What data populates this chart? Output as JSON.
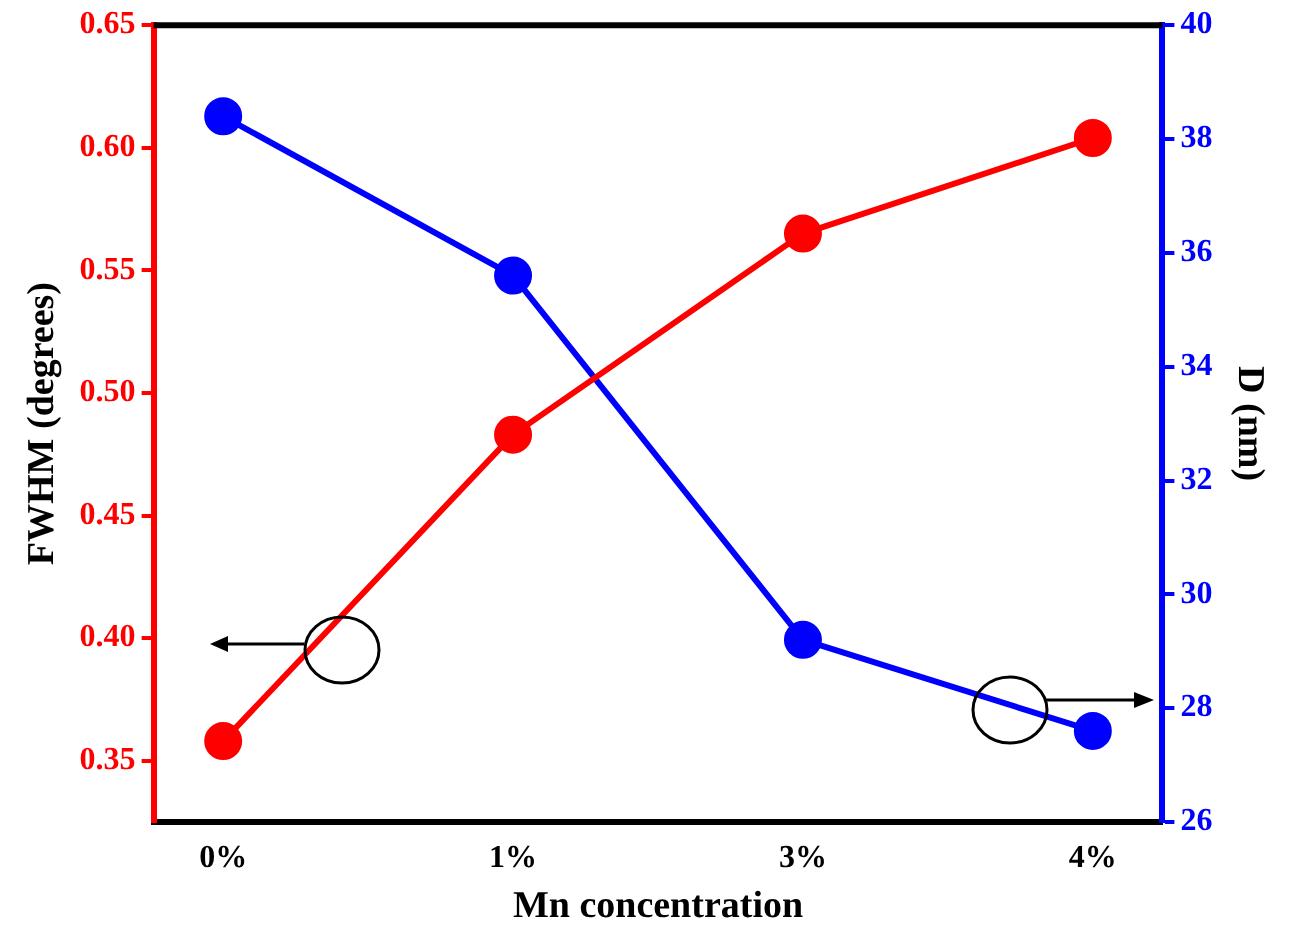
{
  "chart_data": {
    "type": "line",
    "xlabel": "Mn concentration",
    "ylabel": "FWHM (degrees)",
    "y2label": "D (nm)",
    "categories": [
      "0%",
      "1%",
      "3%",
      "4%"
    ],
    "series": [
      {
        "color": "#ff0000",
        "values": [
          0.358,
          0.483,
          0.565,
          0.604
        ],
        "axis": "y"
      },
      {
        "color": "#0000ff",
        "values": [
          38.4,
          35.6,
          29.2,
          27.6
        ],
        "axis": "y2"
      }
    ],
    "ylim": [
      0.325,
      0.65
    ],
    "yticks": [
      0.35,
      {
        "value": 0.4,
        "label": "0.40"
      },
      0.45,
      {
        "value": 0.5,
        "label": "0.50"
      },
      0.55,
      {
        "value": 0.6,
        "label": "0.60"
      },
      0.65
    ],
    "y2lim": [
      26,
      40
    ],
    "y2ticks": [
      26,
      28,
      30,
      32,
      34,
      36,
      38,
      40
    ],
    "marker": "circle",
    "line_style": "solid",
    "grid": false,
    "legend": false
  }
}
